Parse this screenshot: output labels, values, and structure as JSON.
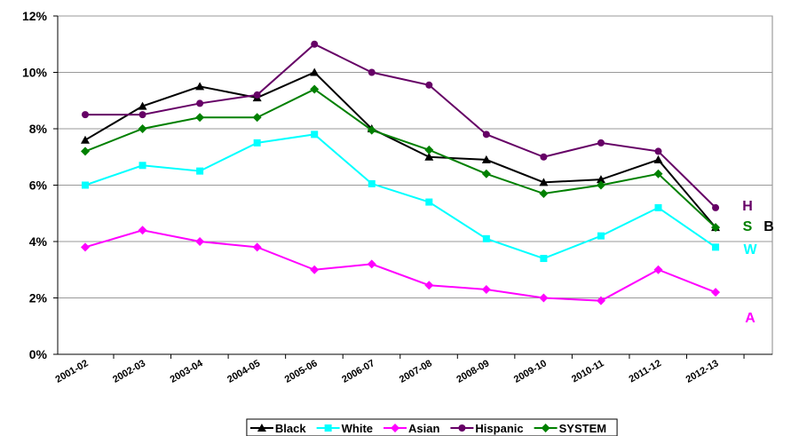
{
  "chart_data": {
    "type": "line",
    "categories": [
      "2001-02",
      "2002-03",
      "2003-04",
      "2004-05",
      "2005-06",
      "2006-07",
      "2007-08",
      "2008-09",
      "2009-10",
      "2010-11",
      "2011-12",
      "2012-13"
    ],
    "series": [
      {
        "name": "Black",
        "color": "#000000",
        "marker": "triangle",
        "values": [
          7.6,
          8.8,
          9.5,
          9.1,
          10.0,
          8.0,
          7.0,
          6.9,
          6.1,
          6.2,
          6.9,
          4.5
        ]
      },
      {
        "name": "White",
        "color": "#00FFFF",
        "marker": "square",
        "values": [
          6.0,
          6.7,
          6.5,
          7.5,
          7.8,
          6.05,
          5.4,
          4.1,
          3.4,
          4.2,
          5.2,
          3.8
        ]
      },
      {
        "name": "Asian",
        "color": "#FF00FF",
        "marker": "diamond",
        "values": [
          3.8,
          4.4,
          4.0,
          3.8,
          3.0,
          3.2,
          2.45,
          2.3,
          2.0,
          1.9,
          3.0,
          2.2
        ]
      },
      {
        "name": "Hispanic",
        "color": "#660066",
        "marker": "circle",
        "values": [
          8.5,
          8.5,
          8.9,
          9.2,
          11.0,
          10.0,
          9.55,
          7.8,
          7.0,
          7.5,
          7.2,
          5.2
        ]
      },
      {
        "name": "SYSTEM",
        "color": "#008000",
        "marker": "diamond",
        "values": [
          7.2,
          8.0,
          8.4,
          8.4,
          9.4,
          7.95,
          7.25,
          6.4,
          5.7,
          6.0,
          6.4,
          4.5
        ]
      }
    ],
    "ylim": [
      0,
      12
    ],
    "yticks": [
      {
        "value": 0,
        "label": "0%"
      },
      {
        "value": 2,
        "label": "2%"
      },
      {
        "value": 4,
        "label": "4%"
      },
      {
        "value": 6,
        "label": "6%"
      },
      {
        "value": 8,
        "label": "8%"
      },
      {
        "value": 10,
        "label": "10%"
      },
      {
        "value": 12,
        "label": "12%"
      }
    ],
    "grid": true,
    "legend": "bottom",
    "annotations": [
      {
        "text": "H",
        "color": "#660066"
      },
      {
        "text": "S",
        "color": "#008000"
      },
      {
        "text": "B",
        "color": "#000000"
      },
      {
        "text": "W",
        "color": "#00FFFF"
      },
      {
        "text": "A",
        "color": "#FF00FF"
      }
    ]
  }
}
